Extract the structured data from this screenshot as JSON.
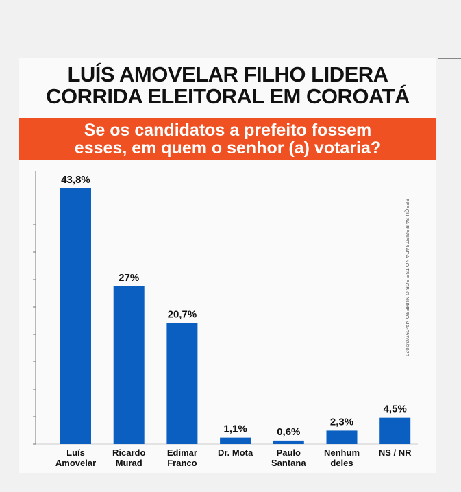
{
  "title_lines": [
    "LUÍS AMOVELAR FILHO LIDERA",
    "CORRIDA ELEITORAL EM COROATÁ"
  ],
  "question_lines": [
    "Se os candidatos a prefeito fossem",
    "esses, em quem o senhor (a) votaria?"
  ],
  "side_note": "PESQUISA REGISTRADA NO TSE SOB O NÚMERO MA-09767/2020",
  "colors": {
    "bar": "#0b5fc0",
    "banner": "#ef5123"
  },
  "chart_data": {
    "type": "bar",
    "title": "Se os candidatos a prefeito fossem esses, em quem o senhor (a) votaria?",
    "categories": [
      [
        "Luís",
        "Amovelar"
      ],
      [
        "Ricardo",
        "Murad"
      ],
      [
        "Edimar",
        "Franco"
      ],
      [
        "Dr. Mota"
      ],
      [
        "Paulo",
        "Santana"
      ],
      [
        "Nenhum",
        "deles"
      ],
      [
        "NS / NR"
      ]
    ],
    "values": [
      43.8,
      27,
      20.7,
      1.1,
      0.6,
      2.3,
      4.5
    ],
    "labels": [
      "43,8%",
      "27%",
      "20,7%",
      "1,1%",
      "0,6%",
      "2,3%",
      "4,5%"
    ],
    "ylim": [
      0,
      46
    ],
    "xlabel": "",
    "ylabel": ""
  }
}
